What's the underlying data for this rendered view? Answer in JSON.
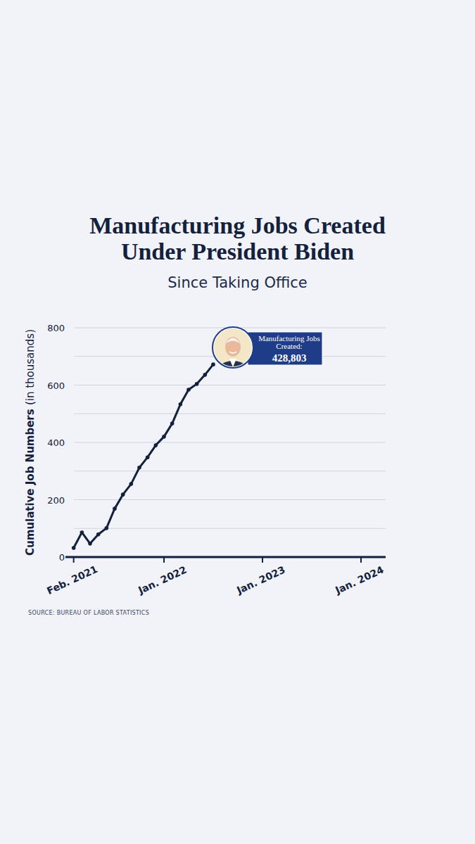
{
  "chart_data": {
    "type": "line",
    "title": "Manufacturing Jobs Created Under President Biden",
    "subtitle": "Since Taking Office",
    "y_label": "Cumulative Job Numbers (in thousands)",
    "source": "SOURCE: BUREAU OF LABOR STATISTICS",
    "annotations": [
      "Manufacturing Jobs Created:",
      "428,803"
    ],
    "x": [
      "2021-02",
      "2021-03",
      "2021-04",
      "2021-05",
      "2021-06",
      "2021-07",
      "2021-08",
      "2021-09",
      "2021-10",
      "2021-11",
      "2021-12",
      "2022-01",
      "2022-02",
      "2022-03",
      "2022-04",
      "2022-05",
      "2022-06",
      "2022-07"
    ],
    "values": [
      32,
      86,
      47,
      79,
      101,
      169,
      218,
      255,
      312,
      348,
      390,
      420,
      466,
      533,
      584,
      604,
      636,
      672
    ],
    "color": "#14213d",
    "marker": "circle",
    "grid": true,
    "xlim": [
      "2021-01",
      "2024-04"
    ],
    "xticks": [
      {
        "value": "2021-02",
        "label": "Feb. 2021"
      },
      {
        "value": "2022-01",
        "label": "Jan. 2022"
      },
      {
        "value": "2023-01",
        "label": "Jan. 2023"
      },
      {
        "value": "2024-01",
        "label": "Jan. 2024"
      }
    ],
    "ylim": [
      0,
      800
    ],
    "yticks": [
      0,
      {
        "value": 100,
        "label": null
      },
      200,
      {
        "value": 300,
        "label": null
      },
      400,
      {
        "value": 500,
        "label": null
      },
      600,
      {
        "value": 700,
        "label": null
      },
      800
    ]
  }
}
